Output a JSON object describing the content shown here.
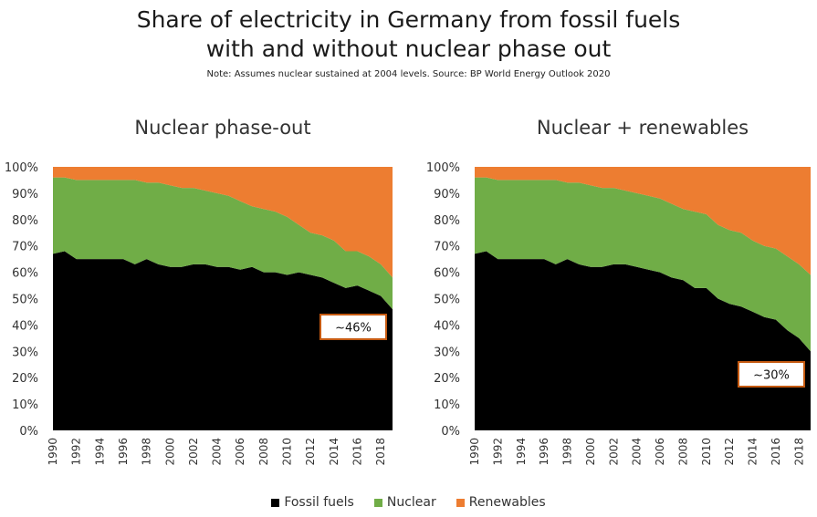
{
  "title_line1": "Share of electricity in Germany from fossil fuels",
  "title_line2": "with and without nuclear phase out",
  "note": "Note: Assumes nuclear sustained at 2004 levels. Source: BP World Energy Outlook 2020",
  "colors": {
    "fossil": "#000000",
    "nuclear": "#70ad47",
    "renewables": "#ed7d31",
    "callout_border": "#c55a11"
  },
  "legend": [
    {
      "name": "Fossil fuels",
      "color": "#000000"
    },
    {
      "name": "Nuclear",
      "color": "#70ad47"
    },
    {
      "name": "Renewables",
      "color": "#ed7d31"
    }
  ],
  "chart_data": [
    {
      "type": "area",
      "stacked": true,
      "title": "Nuclear phase-out",
      "x": [
        1990,
        1991,
        1992,
        1993,
        1994,
        1995,
        1996,
        1997,
        1998,
        1999,
        2000,
        2001,
        2002,
        2003,
        2004,
        2005,
        2006,
        2007,
        2008,
        2009,
        2010,
        2011,
        2012,
        2013,
        2014,
        2015,
        2016,
        2017,
        2018,
        2019
      ],
      "series": [
        {
          "name": "Fossil fuels",
          "values": [
            67,
            68,
            65,
            65,
            65,
            65,
            65,
            63,
            65,
            63,
            62,
            62,
            63,
            63,
            62,
            62,
            61,
            62,
            60,
            60,
            59,
            60,
            59,
            58,
            56,
            54,
            55,
            53,
            51,
            46
          ]
        },
        {
          "name": "Nuclear",
          "values": [
            29,
            28,
            30,
            30,
            30,
            30,
            30,
            32,
            29,
            31,
            31,
            30,
            29,
            28,
            28,
            27,
            26,
            23,
            24,
            23,
            22,
            18,
            16,
            16,
            16,
            14,
            13,
            13,
            12,
            12
          ]
        },
        {
          "name": "Renewables",
          "values": [
            4,
            4,
            5,
            5,
            5,
            5,
            5,
            5,
            6,
            6,
            7,
            8,
            8,
            9,
            10,
            11,
            13,
            15,
            16,
            17,
            19,
            22,
            25,
            26,
            28,
            32,
            32,
            34,
            37,
            42
          ]
        }
      ],
      "ylim": [
        0,
        100
      ],
      "yticks": [
        "0%",
        "10%",
        "20%",
        "30%",
        "40%",
        "50%",
        "60%",
        "70%",
        "80%",
        "90%",
        "100%"
      ],
      "xticks": [
        "1990",
        "1992",
        "1994",
        "1996",
        "1998",
        "2000",
        "2002",
        "2004",
        "2006",
        "2008",
        "2010",
        "2012",
        "2014",
        "2016",
        "2018"
      ],
      "annotation": "~46%"
    },
    {
      "type": "area",
      "stacked": true,
      "title": "Nuclear + renewables",
      "x": [
        1990,
        1991,
        1992,
        1993,
        1994,
        1995,
        1996,
        1997,
        1998,
        1999,
        2000,
        2001,
        2002,
        2003,
        2004,
        2005,
        2006,
        2007,
        2008,
        2009,
        2010,
        2011,
        2012,
        2013,
        2014,
        2015,
        2016,
        2017,
        2018,
        2019
      ],
      "series": [
        {
          "name": "Fossil fuels",
          "values": [
            67,
            68,
            65,
            65,
            65,
            65,
            65,
            63,
            65,
            63,
            62,
            62,
            63,
            63,
            62,
            61,
            60,
            58,
            57,
            54,
            54,
            50,
            48,
            47,
            45,
            43,
            42,
            38,
            35,
            30
          ]
        },
        {
          "name": "Nuclear",
          "values": [
            29,
            28,
            30,
            30,
            30,
            30,
            30,
            32,
            29,
            31,
            31,
            30,
            29,
            28,
            28,
            28,
            28,
            28,
            27,
            29,
            28,
            28,
            28,
            28,
            27,
            27,
            27,
            28,
            28,
            29
          ]
        },
        {
          "name": "Renewables",
          "values": [
            4,
            4,
            5,
            5,
            5,
            5,
            5,
            5,
            6,
            6,
            7,
            8,
            8,
            9,
            10,
            11,
            12,
            14,
            16,
            17,
            18,
            22,
            24,
            25,
            28,
            30,
            31,
            34,
            37,
            41
          ]
        }
      ],
      "ylim": [
        0,
        100
      ],
      "yticks": [
        "0%",
        "10%",
        "20%",
        "30%",
        "40%",
        "50%",
        "60%",
        "70%",
        "80%",
        "90%",
        "100%"
      ],
      "xticks": [
        "1990",
        "1992",
        "1994",
        "1996",
        "1998",
        "2000",
        "2002",
        "2004",
        "2006",
        "2008",
        "2010",
        "2012",
        "2014",
        "2016",
        "2018"
      ],
      "annotation": "~30%"
    }
  ]
}
